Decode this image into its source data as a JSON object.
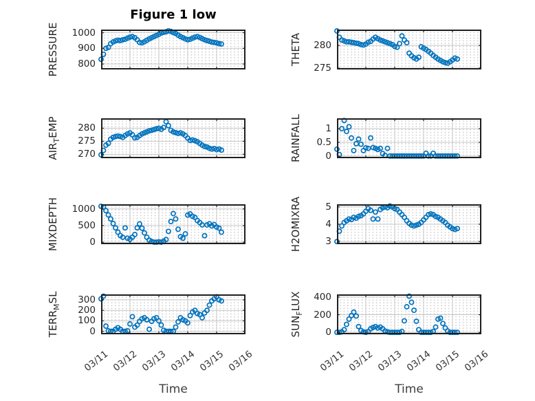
{
  "figure": {
    "title": "Figure 1 low",
    "xlabel": "Time",
    "x_tick_labels": [
      "03/11",
      "03/12",
      "03/13",
      "03/14",
      "03/15",
      "03/16"
    ],
    "x_range_days": [
      0,
      5
    ],
    "sample_step_hours": 2,
    "colors": {
      "marker": "#0072BD",
      "axis": "#1e1e1e",
      "grid": "#c7c7c7",
      "minor_dot": "#c9c9c9",
      "text": "#262626"
    }
  },
  "chart_data": [
    {
      "type": "scatter",
      "name": "PRESSURE",
      "row": 0,
      "col": 0,
      "ylabel_parts": [
        [
          "PRESSURE",
          false
        ]
      ],
      "yticks": [
        800,
        900,
        1000
      ],
      "ytick_labels": [
        "800",
        "900",
        "1000"
      ],
      "ylim": [
        765,
        1020
      ],
      "x_start_day": 0,
      "values": [
        830,
        862,
        900,
        906,
        930,
        941,
        948,
        952,
        950,
        955,
        958,
        965,
        972,
        975,
        968,
        955,
        938,
        935,
        942,
        952,
        960,
        968,
        975,
        982,
        990,
        998,
        1003,
        1006,
        1012,
        1008,
        1001,
        995,
        985,
        975,
        968,
        960,
        955,
        958,
        965,
        972,
        975,
        970,
        962,
        955,
        950,
        945,
        940,
        938,
        935,
        930,
        928
      ]
    },
    {
      "type": "scatter",
      "name": "THETA",
      "row": 0,
      "col": 1,
      "ylabel_parts": [
        [
          "THETA",
          false
        ]
      ],
      "yticks": [
        275,
        280
      ],
      "ytick_labels": [
        "275",
        "280"
      ],
      "ylim": [
        274.7,
        283.5
      ],
      "x_start_day": 0,
      "values": [
        283.2,
        281.8,
        281.2,
        281.0,
        280.8,
        280.8,
        280.7,
        280.6,
        280.5,
        280.4,
        280.2,
        280.1,
        280.3,
        280.7,
        280.9,
        281.4,
        281.8,
        281.5,
        281.2,
        281.0,
        280.8,
        280.6,
        280.4,
        280.2,
        279.8,
        279.6,
        280.4,
        282.1,
        281.2,
        280.6,
        278.3,
        277.7,
        277.3,
        277.0,
        277.4,
        279.7,
        279.4,
        279.1,
        278.7,
        278.3,
        277.8,
        277.4,
        277.0,
        276.7,
        276.4,
        276.2,
        276.1,
        276.4,
        276.8,
        277.2,
        277.0
      ]
    },
    {
      "type": "scatter",
      "name": "AIR_TEMP",
      "row": 1,
      "col": 0,
      "ylabel_parts": [
        [
          "AIR",
          false
        ],
        [
          "T",
          true
        ],
        [
          "EMP",
          false
        ]
      ],
      "yticks": [
        270,
        275,
        280
      ],
      "ytick_labels": [
        "270",
        "275",
        "280"
      ],
      "ylim": [
        268.5,
        283.8
      ],
      "x_start_day": 0,
      "values": [
        269.8,
        271.5,
        273.5,
        274.2,
        275.8,
        276.5,
        276.8,
        277.0,
        276.8,
        276.5,
        277.2,
        277.8,
        278.2,
        277.5,
        276.3,
        276.5,
        277.2,
        277.8,
        278.2,
        278.6,
        279.0,
        279.2,
        279.5,
        279.8,
        280.0,
        279.6,
        280.3,
        282.5,
        281.0,
        279.2,
        278.6,
        278.3,
        278.0,
        278.2,
        277.8,
        277.2,
        276.2,
        275.3,
        275.5,
        275.2,
        274.8,
        274.2,
        273.5,
        273.0,
        272.8,
        272.3,
        272.0,
        272.2,
        271.8,
        272.0,
        271.6
      ]
    },
    {
      "type": "scatter",
      "name": "RAINFALL",
      "row": 1,
      "col": 1,
      "ylabel_parts": [
        [
          "RAINFALL",
          false
        ]
      ],
      "yticks": [
        0,
        0.5,
        1
      ],
      "ytick_labels": [
        "0",
        "0.5",
        "1"
      ],
      "ylim": [
        -0.08,
        1.38
      ],
      "x_start_day": 0,
      "values": [
        0.25,
        0.05,
        1.0,
        1.3,
        0.9,
        1.07,
        0.66,
        0.2,
        0.45,
        0.62,
        0.43,
        0.2,
        0.3,
        0.28,
        0.66,
        0.31,
        0.28,
        0.24,
        0.28,
        0.09,
        0.02,
        0.28,
        0,
        0,
        0,
        0,
        0,
        0,
        0,
        0,
        0,
        0,
        0,
        0,
        0,
        0,
        0,
        0.1,
        0,
        0,
        0.1,
        0,
        0,
        0,
        0,
        0,
        0,
        0,
        0,
        0,
        0
      ]
    },
    {
      "type": "scatter",
      "name": "MIXDEPTH",
      "row": 2,
      "col": 0,
      "ylabel_parts": [
        [
          "MIXDEPTH",
          false
        ]
      ],
      "yticks": [
        0,
        500,
        1000
      ],
      "ytick_labels": [
        "0",
        "500",
        "1000"
      ],
      "ylim": [
        -60,
        1140
      ],
      "x_start_day": 0,
      "values": [
        1080,
        1060,
        950,
        820,
        700,
        560,
        430,
        300,
        200,
        150,
        430,
        120,
        90,
        150,
        230,
        430,
        550,
        420,
        280,
        150,
        60,
        20,
        0,
        0,
        10,
        0,
        30,
        80,
        325,
        620,
        860,
        700,
        390,
        165,
        120,
        250,
        815,
        850,
        780,
        745,
        650,
        590,
        520,
        195,
        520,
        555,
        490,
        530,
        455,
        425,
        300
      ]
    },
    {
      "type": "scatter",
      "name": "H2OMIXRA",
      "row": 2,
      "col": 1,
      "ylabel_parts": [
        [
          "H2OMIXRA",
          false
        ]
      ],
      "yticks": [
        3,
        4,
        5
      ],
      "ytick_labels": [
        "3",
        "4",
        "5"
      ],
      "ylim": [
        2.85,
        5.15
      ],
      "x_start_day": 0,
      "values": [
        3.0,
        3.6,
        3.9,
        4.1,
        4.2,
        4.3,
        4.27,
        4.4,
        4.35,
        4.45,
        4.5,
        4.6,
        4.75,
        4.9,
        4.8,
        4.3,
        4.7,
        4.3,
        4.85,
        4.95,
        5.0,
        4.95,
        5.05,
        5.0,
        4.9,
        4.85,
        4.7,
        4.55,
        4.4,
        4.2,
        4.05,
        3.95,
        3.9,
        3.95,
        4.0,
        4.1,
        4.25,
        4.4,
        4.55,
        4.6,
        4.55,
        4.45,
        4.4,
        4.3,
        4.2,
        4.1,
        3.95,
        3.85,
        3.75,
        3.7,
        3.75
      ]
    },
    {
      "type": "scatter",
      "name": "TERR_MSL",
      "row": 3,
      "col": 0,
      "ylabel_parts": [
        [
          "TERR",
          false
        ],
        [
          "M",
          true
        ],
        [
          "SL",
          false
        ]
      ],
      "yticks": [
        0,
        100,
        200,
        300
      ],
      "ytick_labels": [
        "0",
        "100",
        "200",
        "300"
      ],
      "ylim": [
        -28,
        352
      ],
      "x_start_day": 0,
      "values": [
        310,
        335,
        50,
        5,
        0,
        0,
        20,
        35,
        20,
        0,
        0,
        5,
        70,
        140,
        40,
        60,
        95,
        120,
        130,
        110,
        20,
        95,
        120,
        130,
        100,
        60,
        10,
        0,
        0,
        0,
        0,
        40,
        90,
        130,
        110,
        100,
        80,
        150,
        185,
        200,
        170,
        160,
        130,
        175,
        200,
        250,
        290,
        310,
        330,
        300,
        290
      ]
    },
    {
      "type": "scatter",
      "name": "SUN_FLUX",
      "row": 3,
      "col": 1,
      "ylabel_parts": [
        [
          "SUN",
          false
        ],
        [
          "F",
          true
        ],
        [
          "LUX",
          false
        ]
      ],
      "yticks": [
        0,
        200,
        400
      ],
      "ytick_labels": [
        "0",
        "200",
        "400"
      ],
      "ylim": [
        -22,
        430
      ],
      "x_start_day": 0,
      "values": [
        0,
        0,
        5,
        30,
        90,
        150,
        190,
        230,
        185,
        65,
        20,
        5,
        0,
        10,
        40,
        55,
        65,
        50,
        60,
        40,
        15,
        5,
        0,
        0,
        0,
        0,
        0,
        10,
        130,
        290,
        410,
        340,
        250,
        125,
        30,
        0,
        0,
        0,
        0,
        0,
        10,
        60,
        150,
        160,
        100,
        50,
        15,
        0,
        0,
        0,
        0
      ]
    }
  ]
}
